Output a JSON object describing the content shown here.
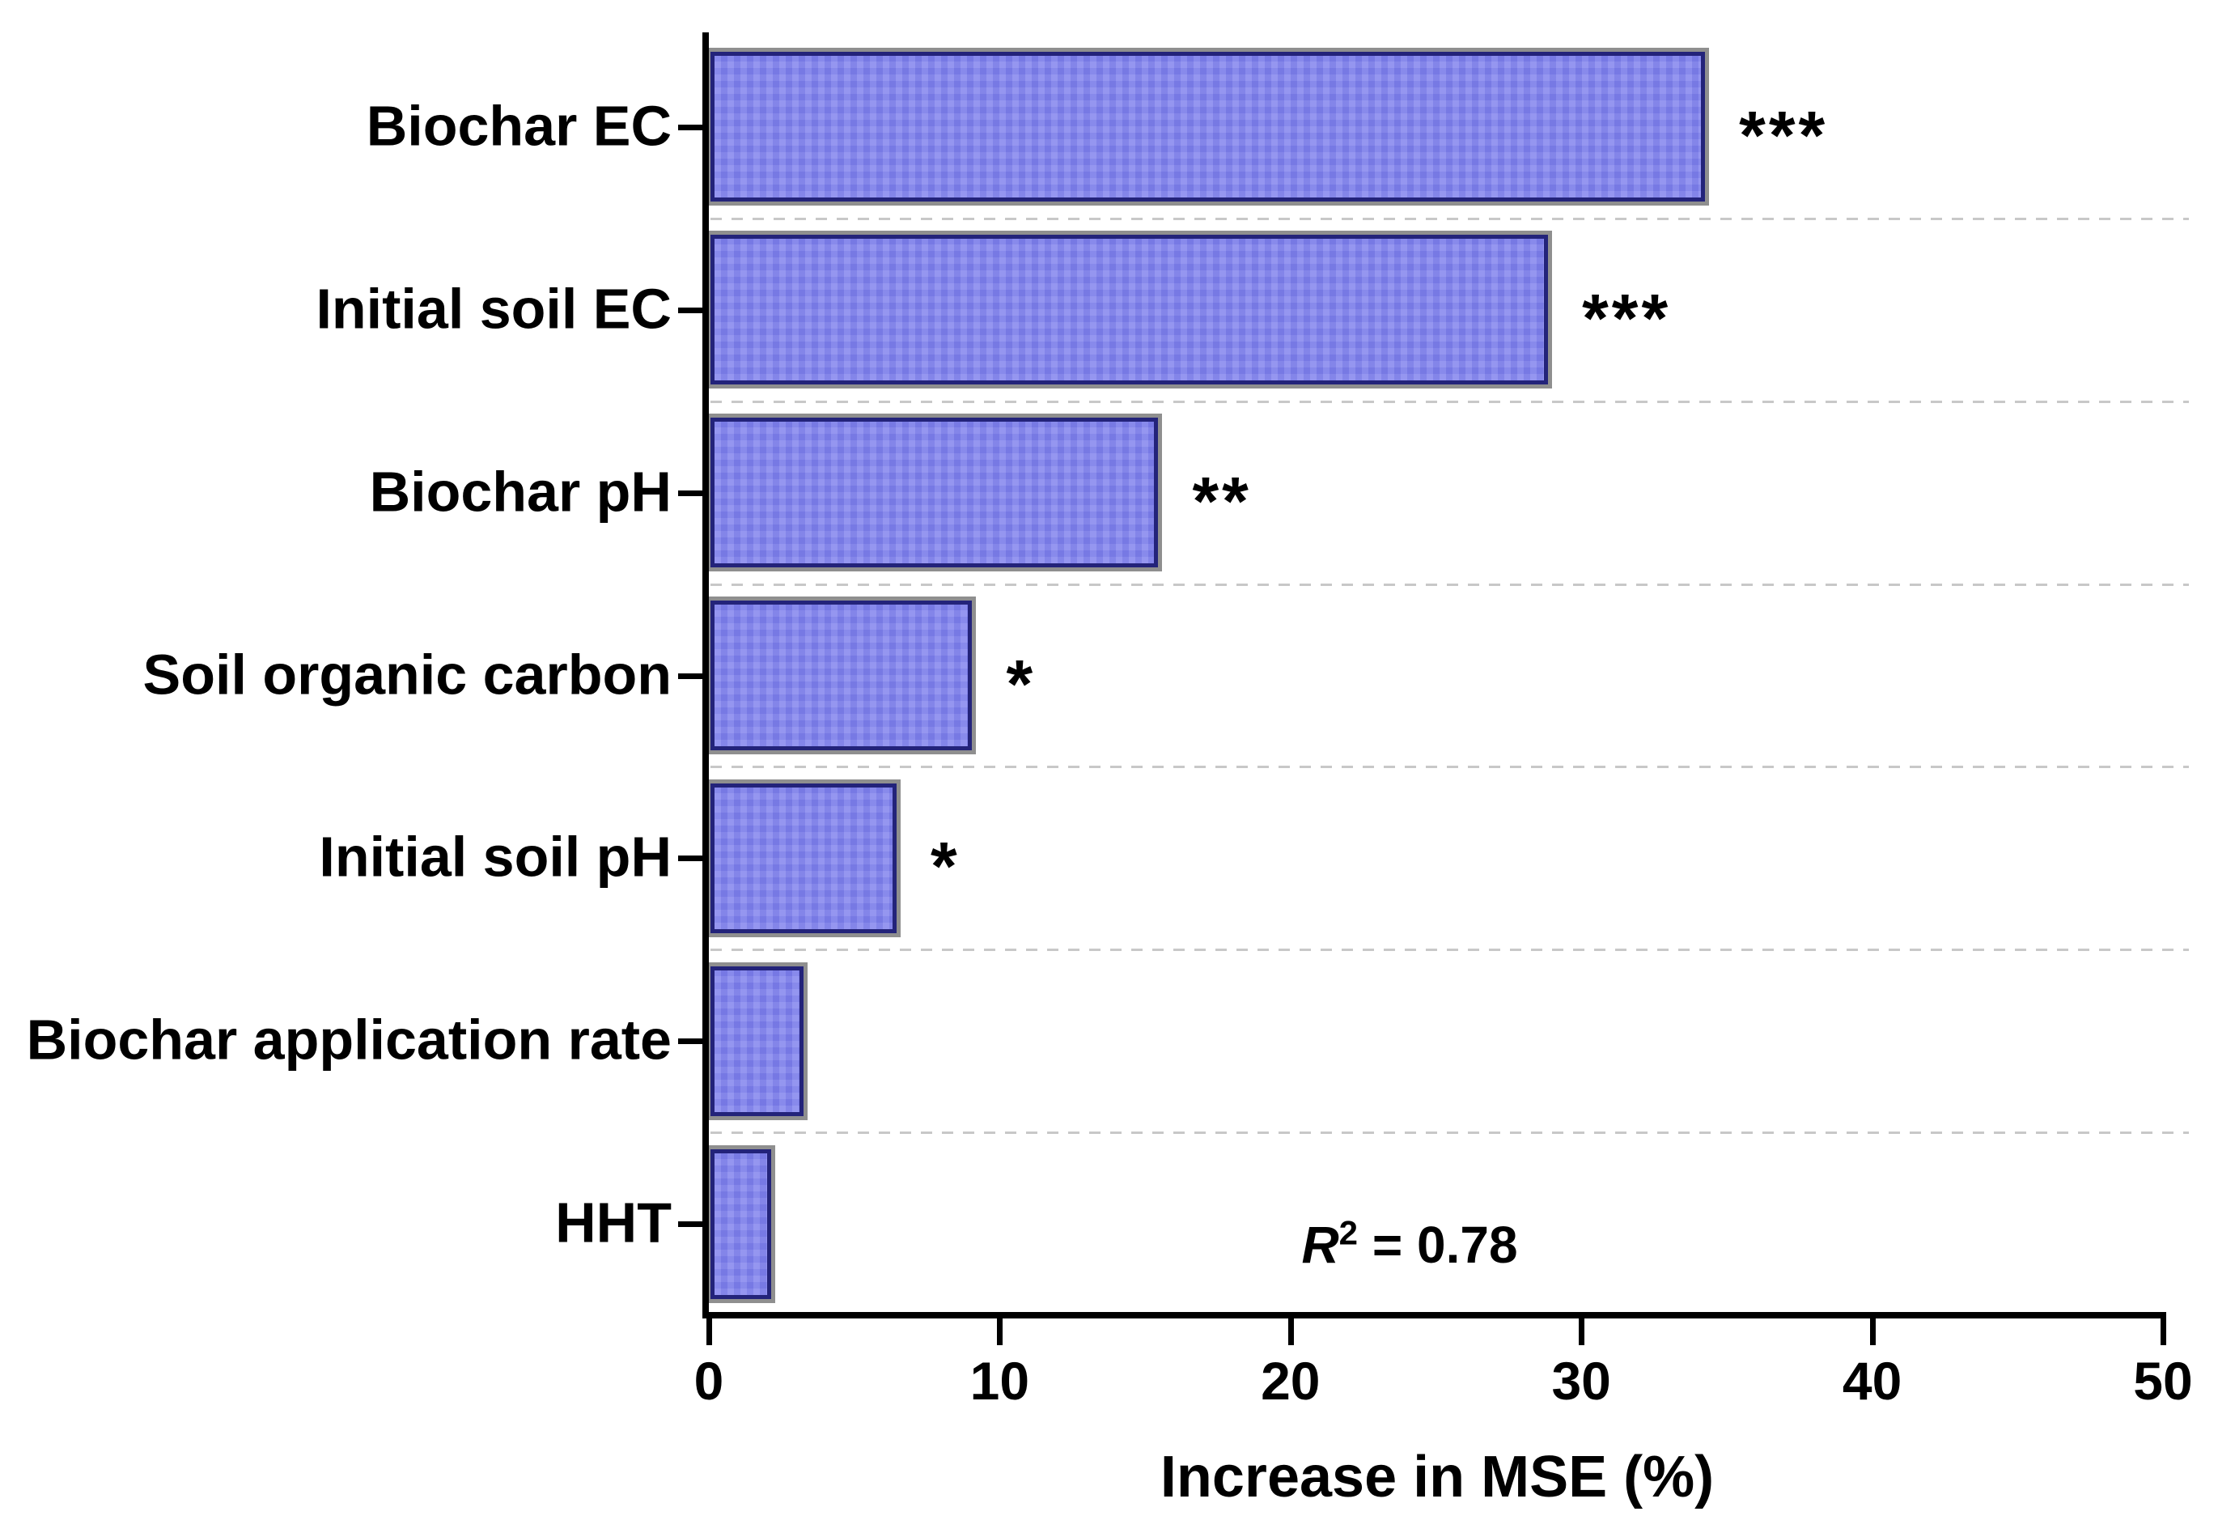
{
  "chart_data": {
    "type": "bar",
    "orientation": "horizontal",
    "categories": [
      "Biochar EC",
      "Initial soil EC",
      "Biochar pH",
      "Soil organic carbon",
      "Initial soil pH",
      "Biochar application rate",
      "HHT"
    ],
    "values": [
      34.2,
      28.8,
      15.4,
      9.0,
      6.4,
      3.2,
      2.1
    ],
    "significance": [
      "***",
      "***",
      "**",
      "*",
      "*",
      "",
      ""
    ],
    "xlabel": "Increase in MSE (%)",
    "xlim": [
      0,
      50
    ],
    "xticks": [
      0,
      10,
      20,
      30,
      40,
      50
    ],
    "xtick_labels": [
      "0",
      "10",
      "20",
      "30",
      "40",
      "50"
    ],
    "grid": {
      "horizontal_dashed_separators": true,
      "separator_color": "#c8c8c8"
    },
    "annotation": {
      "r": "R",
      "exponent": "2",
      "tail": " = 0.78"
    },
    "legend": "none",
    "colors": {
      "bar_fill": "#8183ee",
      "bar_border": "#23237a",
      "bar_shadow": "#8f8f8f",
      "axis": "#000000",
      "text": "#000000"
    }
  }
}
